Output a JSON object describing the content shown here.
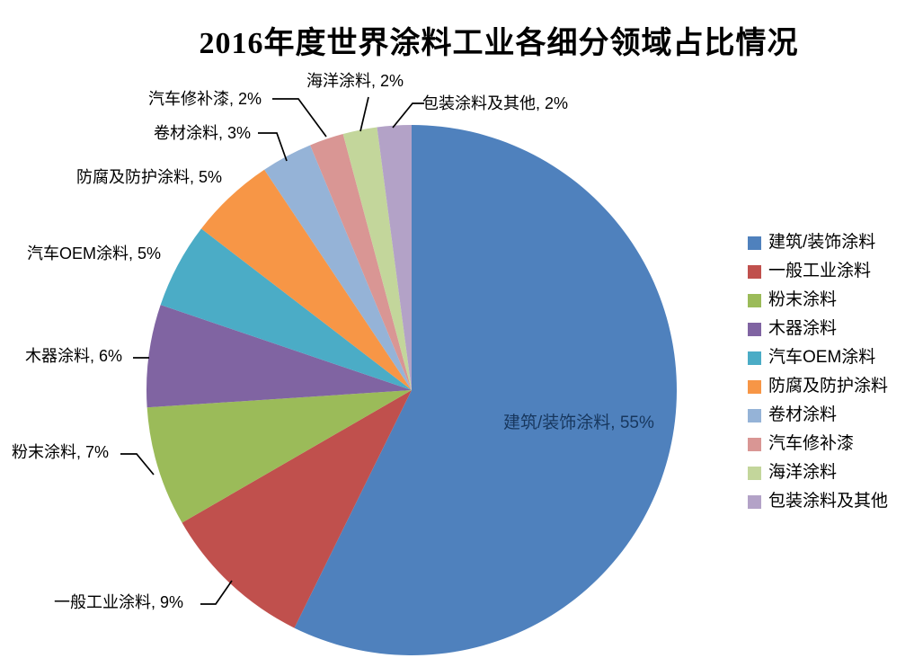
{
  "chart_data": {
    "type": "pie",
    "title": "2016年度世界涂料工业各细分领域占比情况",
    "legend_position": "right",
    "label_format": "name, value%",
    "inside_label_color": "#17375E",
    "background_color": "#FFFFFF",
    "slices": [
      {
        "name": "建筑/装饰涂料",
        "value": 55,
        "color": "#4F81BD",
        "label": "建筑/装饰涂料, 55%"
      },
      {
        "name": "一般工业涂料",
        "value": 9,
        "color": "#C0504D",
        "label": "一般工业涂料, 9%"
      },
      {
        "name": "粉末涂料",
        "value": 7,
        "color": "#9BBB59",
        "label": "粉末涂料, 7%"
      },
      {
        "name": "木器涂料",
        "value": 6,
        "color": "#8064A2",
        "label": "木器涂料, 6%"
      },
      {
        "name": "汽车OEM涂料",
        "value": 5,
        "color": "#4BACC6",
        "label": "汽车OEM涂料, 5%"
      },
      {
        "name": "防腐及防护涂料",
        "value": 5,
        "color": "#F79646",
        "label": "防腐及防护涂料, 5%"
      },
      {
        "name": "卷材涂料",
        "value": 3,
        "color": "#95B3D7",
        "label": "卷材涂料, 3%"
      },
      {
        "name": "汽车修补漆",
        "value": 2,
        "color": "#D99694",
        "label": "汽车修补漆, 2%"
      },
      {
        "name": "海洋涂料",
        "value": 2,
        "color": "#C3D69B",
        "label": "海洋涂料, 2%"
      },
      {
        "name": "包装涂料及其他",
        "value": 2,
        "color": "#B3A2C7",
        "label": "包装涂料及其他, 2%"
      }
    ]
  }
}
